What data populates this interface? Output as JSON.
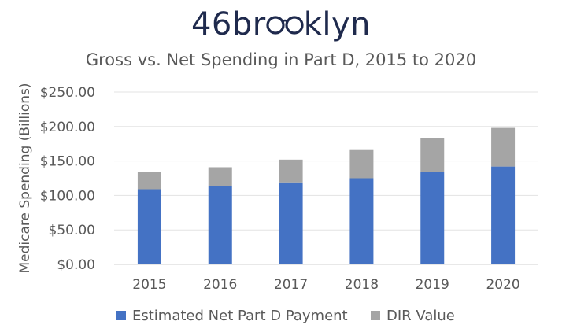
{
  "brand": {
    "text_left": "46br",
    "text_right": "klyn"
  },
  "chart_data": {
    "type": "bar",
    "stacked": true,
    "title": "Gross vs. Net Spending in Part D, 2015 to 2020",
    "xlabel": "",
    "ylabel": "Medicare Spending (Billions)",
    "categories": [
      "2015",
      "2016",
      "2017",
      "2018",
      "2019",
      "2020"
    ],
    "series": [
      {
        "name": "Estimated Net Part D Payment",
        "values": [
          109,
          114,
          119,
          125,
          134,
          142
        ],
        "color": "#4472c4"
      },
      {
        "name": "DIR Value",
        "values": [
          25,
          27,
          33,
          42,
          49,
          56
        ],
        "color": "#a5a5a5"
      }
    ],
    "ylim": [
      0,
      250
    ],
    "yticks": [
      "$0.00",
      "$50.00",
      "$100.00",
      "$150.00",
      "$200.00",
      "$250.00"
    ],
    "grid": true,
    "legend": "bottom"
  }
}
